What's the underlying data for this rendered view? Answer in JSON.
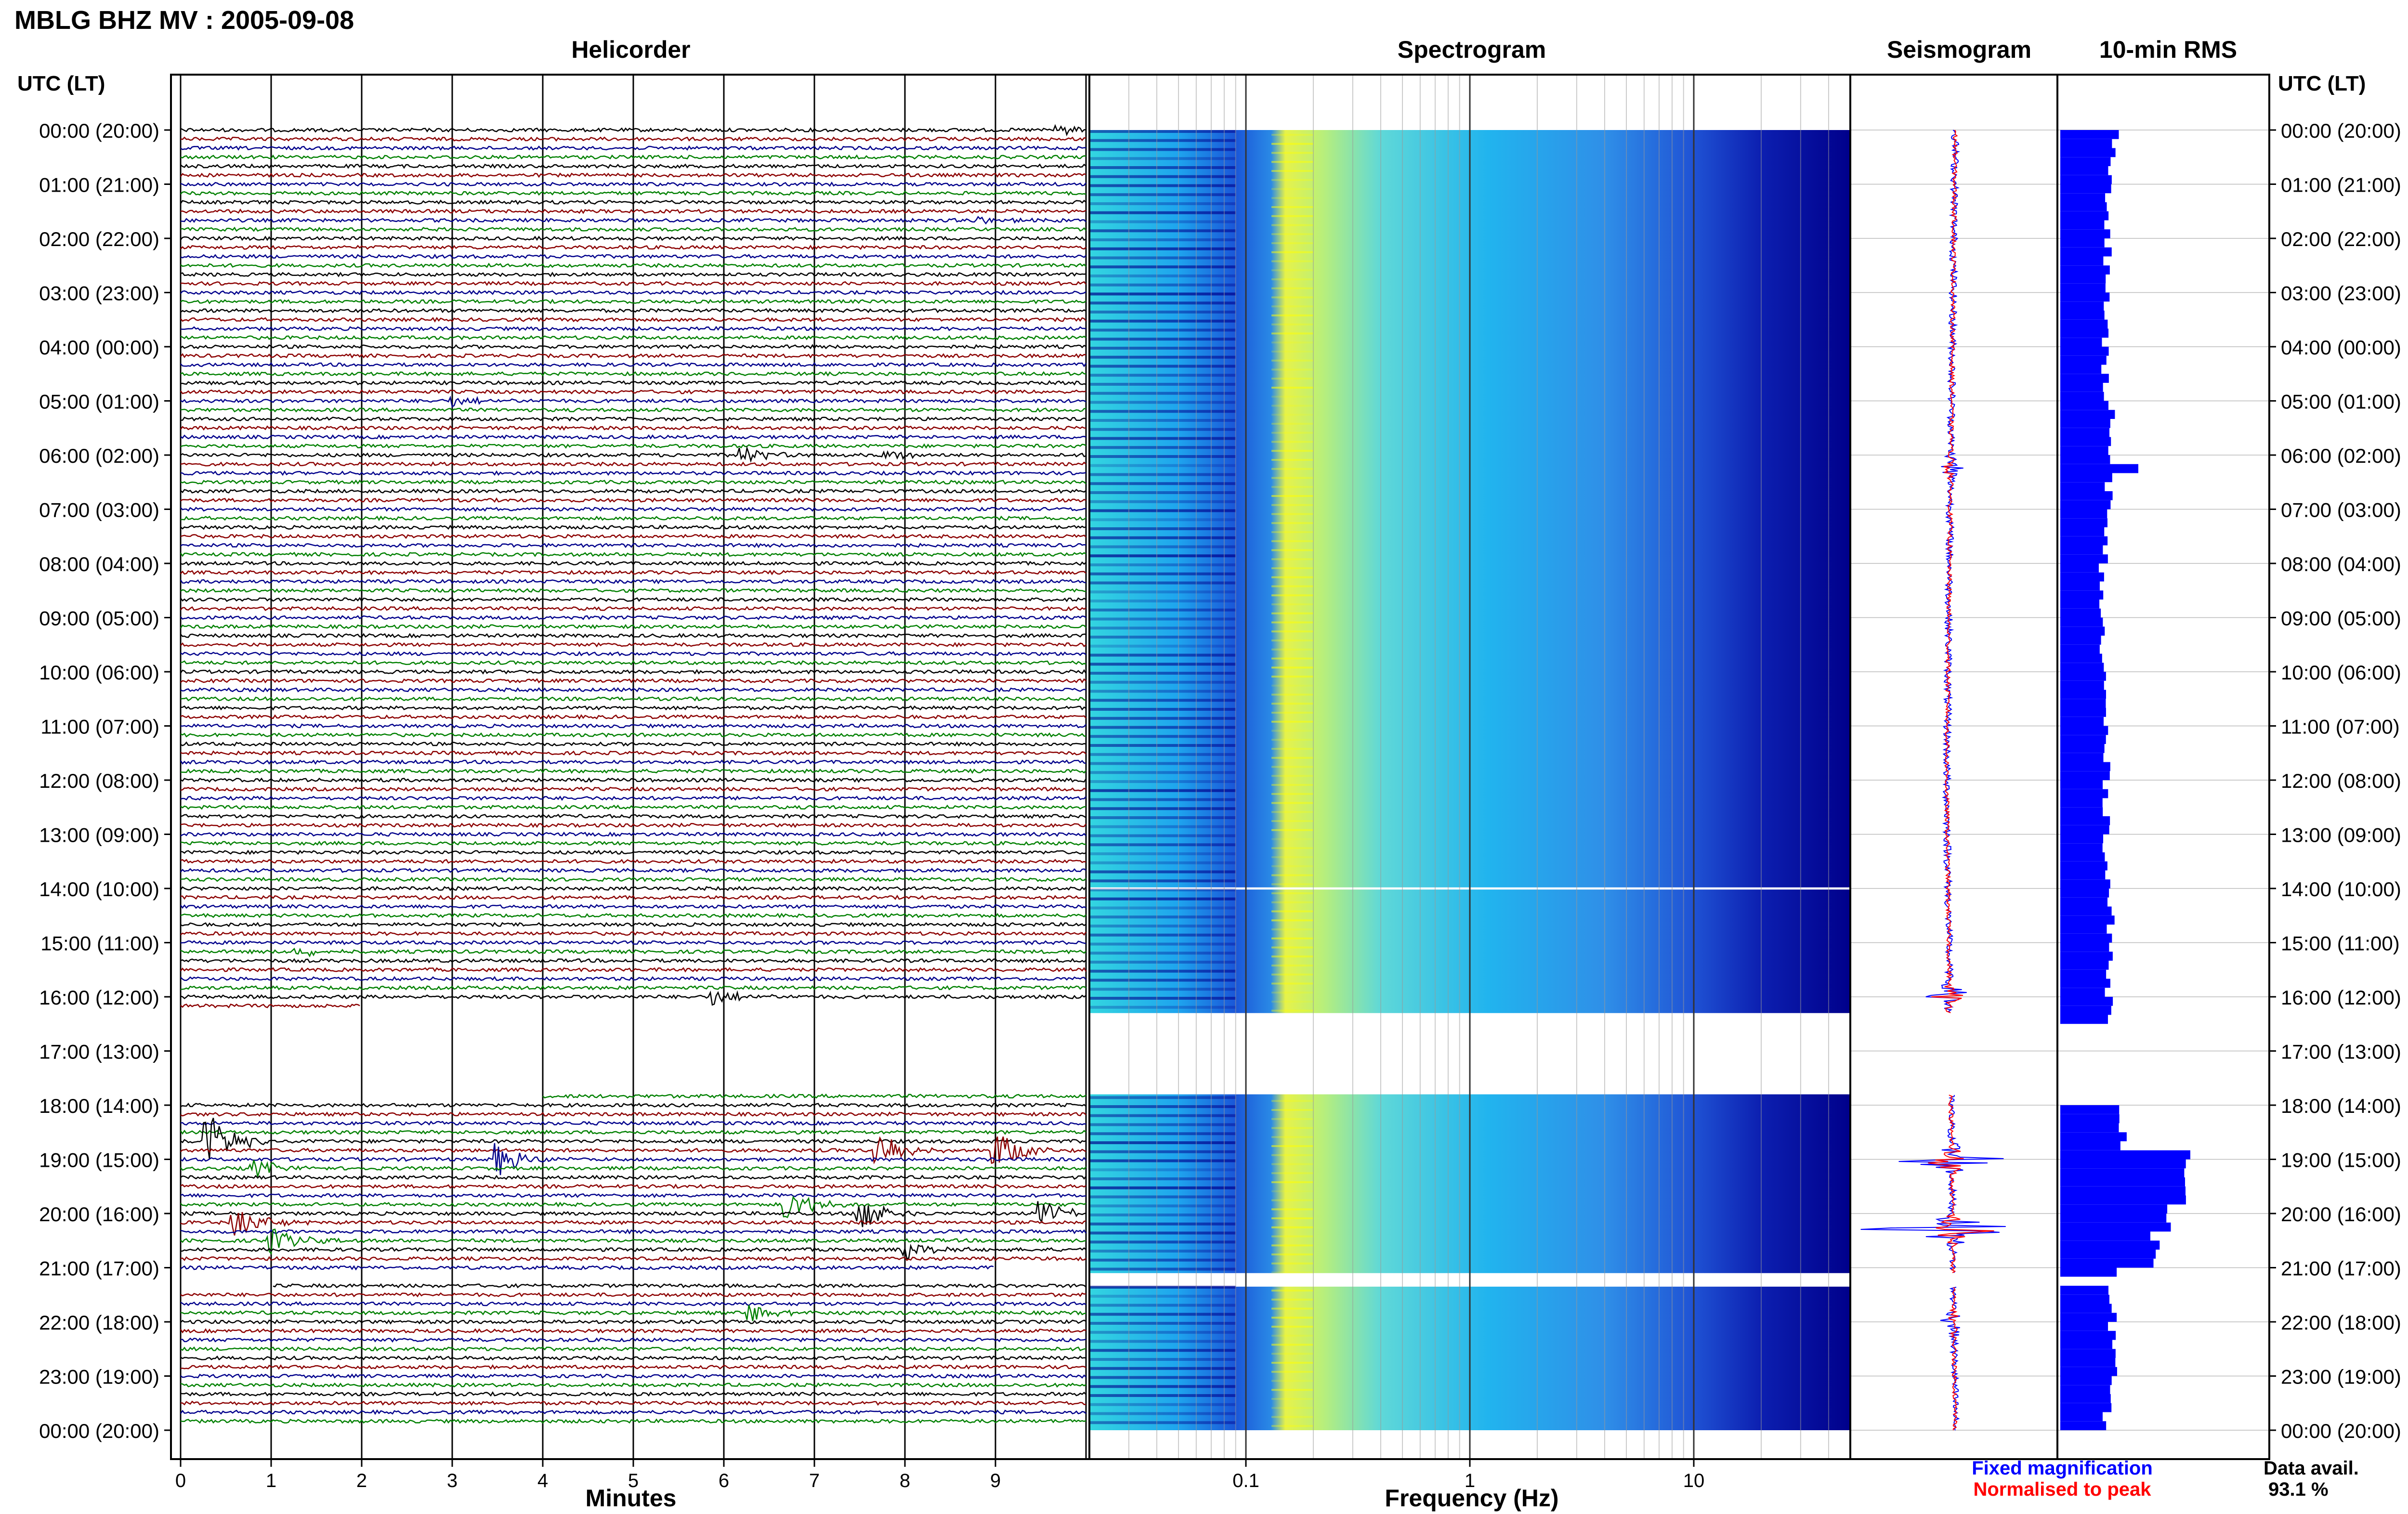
{
  "header": {
    "station_title": "MBLG BHZ MV : 2005-09-08"
  },
  "panels": {
    "helicorder": "Helicorder",
    "spectrogram": "Spectrogram",
    "seismogram": "Seismogram",
    "rms": "10-min RMS"
  },
  "time_axis": {
    "left_label": "UTC (LT)",
    "right_label": "UTC (LT)",
    "ticks": [
      "00:00 (20:00)",
      "01:00 (21:00)",
      "02:00 (22:00)",
      "03:00 (23:00)",
      "04:00 (00:00)",
      "05:00 (01:00)",
      "06:00 (02:00)",
      "07:00 (03:00)",
      "08:00 (04:00)",
      "09:00 (05:00)",
      "10:00 (06:00)",
      "11:00 (07:00)",
      "12:00 (08:00)",
      "13:00 (09:00)",
      "14:00 (10:00)",
      "15:00 (11:00)",
      "16:00 (12:00)",
      "17:00 (13:00)",
      "18:00 (14:00)",
      "19:00 (15:00)",
      "20:00 (16:00)",
      "21:00 (17:00)",
      "22:00 (18:00)",
      "23:00 (19:00)",
      "00:00 (20:00)"
    ]
  },
  "helicorder_axis": {
    "xlabel": "Minutes",
    "ticks": [
      "0",
      "1",
      "2",
      "3",
      "4",
      "5",
      "6",
      "7",
      "8",
      "9"
    ]
  },
  "spectrogram_axis": {
    "xlabel": "Frequency (Hz)",
    "ticks": [
      "0.1",
      "1",
      "10"
    ]
  },
  "legend": {
    "fixed": "Fixed magnification",
    "normalised": "Normalised to peak",
    "avail_label": "Data avail.",
    "avail_value": "93.1 %"
  },
  "colors": {
    "trace_cycle": [
      "#000000",
      "#8b0000",
      "#00008b",
      "#008000"
    ],
    "fixed": "#0000ff",
    "normalised": "#ff0000",
    "rms_bar": "#0000ff",
    "spectro_low": "#00008b",
    "spectro_mid": "#00bfff",
    "spectro_high": "#ffff00"
  },
  "chart_data": [
    {
      "type": "line",
      "name": "helicorder",
      "x_range_minutes": [
        0,
        10
      ],
      "y_range_hours_utc": [
        0,
        24
      ],
      "row_count": 144,
      "data_gaps_hours_utc": [
        [
          16.2,
          17.9
        ],
        [
          21.15,
          21.35
        ]
      ],
      "events": [
        {
          "hour": 0.08,
          "minute": 9.7,
          "amp": 0.8
        },
        {
          "hour": 1.8,
          "minute": 8.8,
          "amp": 0.5
        },
        {
          "hour": 5.1,
          "minute": 3.0,
          "amp": 0.7
        },
        {
          "hour": 6.1,
          "minute": 6.2,
          "amp": 1.2
        },
        {
          "hour": 6.1,
          "minute": 7.8,
          "amp": 0.6
        },
        {
          "hour": 15.3,
          "minute": 1.3,
          "amp": 0.6
        },
        {
          "hour": 16.0,
          "minute": 5.9,
          "amp": 1.0
        },
        {
          "hour": 18.8,
          "minute": 0.3,
          "amp": 3.5
        },
        {
          "hour": 18.9,
          "minute": 9.0,
          "amp": 2.4
        },
        {
          "hour": 18.9,
          "minute": 7.7,
          "amp": 2.6
        },
        {
          "hour": 19.1,
          "minute": 3.5,
          "amp": 2.0
        },
        {
          "hour": 19.3,
          "minute": 0.8,
          "amp": 1.2
        },
        {
          "hour": 19.9,
          "minute": 6.7,
          "amp": 2.2
        },
        {
          "hour": 20.0,
          "minute": 7.5,
          "amp": 2.6
        },
        {
          "hour": 20.1,
          "minute": 9.5,
          "amp": 1.6
        },
        {
          "hour": 20.3,
          "minute": 0.6,
          "amp": 2.0
        },
        {
          "hour": 20.6,
          "minute": 1.0,
          "amp": 1.6
        },
        {
          "hour": 20.7,
          "minute": 8.0,
          "amp": 1.0
        },
        {
          "hour": 21.9,
          "minute": 6.3,
          "amp": 1.2
        }
      ]
    },
    {
      "type": "heatmap",
      "name": "spectrogram",
      "x_scale": "log",
      "x_range_hz": [
        0.02,
        50
      ],
      "y_range_hours_utc": [
        0,
        24
      ],
      "peak_band_hz": [
        0.13,
        0.22
      ],
      "data_gaps_hours_utc": [
        [
          13.98,
          14.02
        ],
        [
          16.3,
          17.8
        ],
        [
          21.1,
          21.35
        ]
      ]
    },
    {
      "type": "line",
      "name": "seismogram",
      "series": [
        "Fixed magnification",
        "Normalised to peak"
      ],
      "y_range_hours_utc": [
        0,
        24
      ],
      "drift": [
        [
          0,
          0
        ],
        [
          12,
          -0.3
        ],
        [
          24,
          0
        ]
      ],
      "bursts": [
        {
          "hour": 6.25,
          "amp": 1.2
        },
        {
          "hour": 16.0,
          "amp": 2.5
        },
        {
          "hour": 19.0,
          "amp": 6.0
        },
        {
          "hour": 20.3,
          "amp": 7.0
        },
        {
          "hour": 22.0,
          "amp": 1.0
        }
      ],
      "data_gaps_hours_utc": [
        [
          16.3,
          17.8
        ],
        [
          21.1,
          21.35
        ]
      ]
    },
    {
      "type": "bar",
      "name": "10-min RMS",
      "orientation": "horizontal",
      "y_range_hours_utc": [
        0,
        24
      ],
      "x_range_relative": [
        0,
        1
      ],
      "hourly_levels": [
        0.4,
        0.36,
        0.36,
        0.35,
        0.34,
        0.36,
        0.38,
        0.34,
        0.32,
        0.32,
        0.34,
        0.35,
        0.36,
        0.36,
        0.38,
        0.38,
        0.38,
        null,
        0.5,
        0.9,
        0.75,
        0.4,
        0.4,
        0.36
      ],
      "peaks": [
        {
          "hour": 0.15,
          "value": 0.45
        },
        {
          "hour": 5.25,
          "value": 0.42
        },
        {
          "hour": 6.2,
          "value": 0.6
        },
        {
          "hour": 17.95,
          "value": 0.5
        },
        {
          "hour": 18.95,
          "value": 1.0
        },
        {
          "hour": 19.25,
          "value": 0.85
        },
        {
          "hour": 19.6,
          "value": 0.45
        },
        {
          "hour": 20.2,
          "value": 0.85
        },
        {
          "hour": 20.4,
          "value": 0.5
        },
        {
          "hour": 20.9,
          "value": 0.45
        }
      ],
      "data_gaps_hours_utc": [
        [
          16.5,
          17.7
        ],
        [
          21.15,
          21.35
        ]
      ]
    }
  ]
}
